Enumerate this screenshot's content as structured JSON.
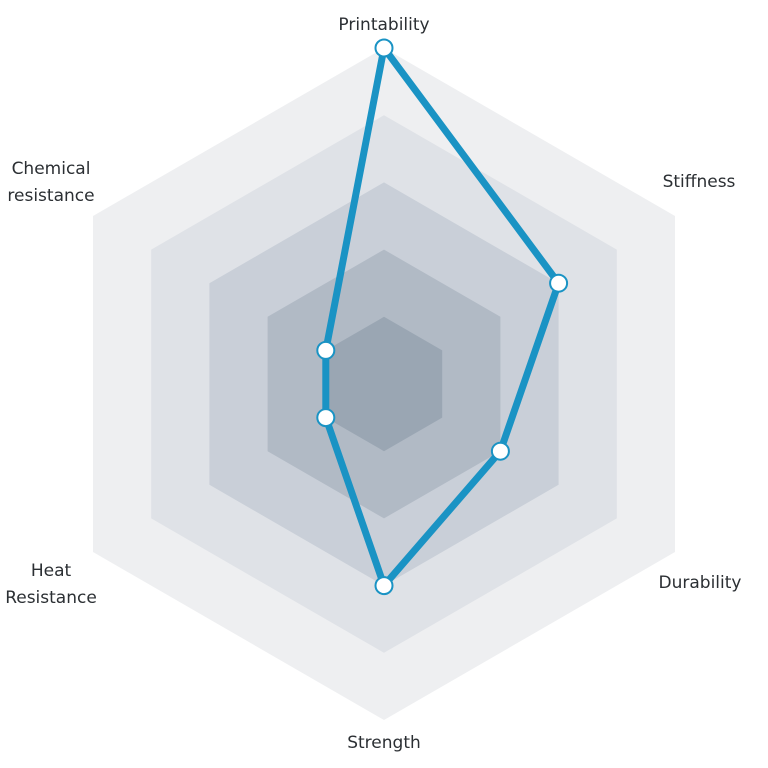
{
  "chart_data": {
    "type": "radar",
    "axes": [
      {
        "label_lines": [
          "Printability"
        ],
        "value": 10
      },
      {
        "label_lines": [
          "Stiffness"
        ],
        "value": 6
      },
      {
        "label_lines": [
          "Durability"
        ],
        "value": 4
      },
      {
        "label_lines": [
          "Strength"
        ],
        "value": 6
      },
      {
        "label_lines": [
          "Heat",
          "Resistance"
        ],
        "value": 2
      },
      {
        "label_lines": [
          "Chemical",
          "resistance"
        ],
        "value": 2
      }
    ],
    "r_range": [
      0,
      10
    ],
    "rings": 5,
    "colors": {
      "series": "#1a93c4",
      "point_fill": "#ffffff",
      "rings": [
        "#eeeff1",
        "#dfe2e7",
        "#c9cfd8",
        "#b1bac5",
        "#9aa6b3"
      ]
    }
  }
}
